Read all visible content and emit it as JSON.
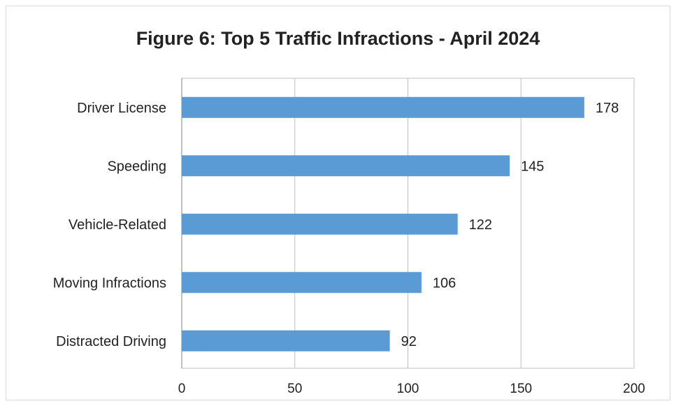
{
  "chart_data": {
    "type": "bar",
    "orientation": "horizontal",
    "title": "Figure 6: Top 5 Traffic Infractions - April 2024",
    "categories": [
      "Driver License",
      "Speeding",
      "Vehicle-Related",
      "Moving Infractions",
      "Distracted Driving"
    ],
    "values": [
      178,
      145,
      122,
      106,
      92
    ],
    "xlim": [
      0,
      200
    ],
    "x_ticks": [
      0,
      50,
      100,
      150,
      200
    ],
    "bar_color": "#5b9bd5",
    "grid": true,
    "data_labels": true
  }
}
